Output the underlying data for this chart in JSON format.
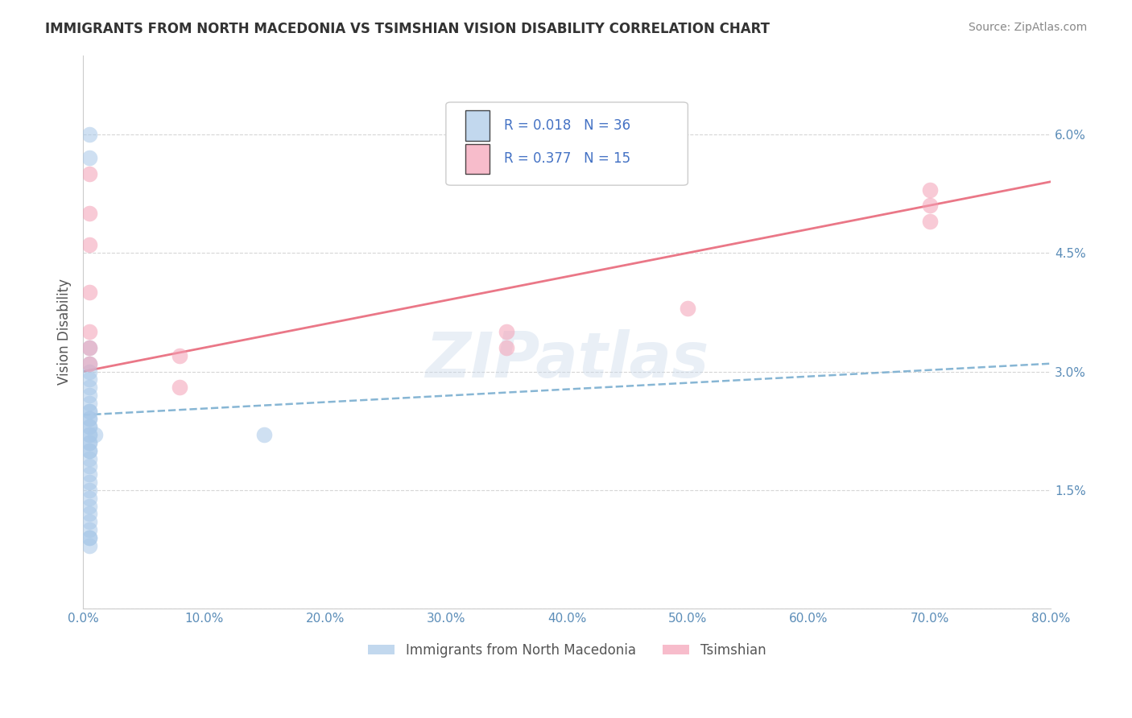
{
  "title": "IMMIGRANTS FROM NORTH MACEDONIA VS TSIMSHIAN VISION DISABILITY CORRELATION CHART",
  "source": "Source: ZipAtlas.com",
  "ylabel": "Vision Disability",
  "legend_label_blue": "Immigrants from North Macedonia",
  "legend_label_pink": "Tsimshian",
  "R_blue": 0.018,
  "N_blue": 36,
  "R_pink": 0.377,
  "N_pink": 15,
  "xlim": [
    0.0,
    0.8
  ],
  "ylim": [
    0.0,
    0.07
  ],
  "xticks": [
    0.0,
    0.1,
    0.2,
    0.3,
    0.4,
    0.5,
    0.6,
    0.7,
    0.8
  ],
  "yticks": [
    0.0,
    0.015,
    0.03,
    0.045,
    0.06
  ],
  "ytick_labels": [
    "",
    "1.5%",
    "3.0%",
    "4.5%",
    "6.0%"
  ],
  "xtick_labels": [
    "0.0%",
    "10.0%",
    "20.0%",
    "30.0%",
    "40.0%",
    "50.0%",
    "60.0%",
    "70.0%",
    "80.0%"
  ],
  "color_blue": "#a8c8e8",
  "color_pink": "#f4a0b5",
  "color_blue_line": "#7aaed0",
  "color_pink_line": "#e8687a",
  "color_axis_text": "#5b8db8",
  "color_legend_text_dark": "#333333",
  "color_legend_r_blue": "#4472c4",
  "color_legend_r_pink": "#4472c4",
  "watermark": "ZIPatlas",
  "blue_x": [
    0.005,
    0.005,
    0.005,
    0.005,
    0.005,
    0.005,
    0.005,
    0.005,
    0.005,
    0.005,
    0.005,
    0.005,
    0.005,
    0.005,
    0.005,
    0.005,
    0.005,
    0.005,
    0.005,
    0.005,
    0.005,
    0.005,
    0.005,
    0.005,
    0.005,
    0.005,
    0.005,
    0.005,
    0.005,
    0.005,
    0.005,
    0.005,
    0.005,
    0.01,
    0.15,
    0.005
  ],
  "blue_y": [
    0.06,
    0.057,
    0.033,
    0.031,
    0.03,
    0.029,
    0.028,
    0.027,
    0.026,
    0.025,
    0.025,
    0.024,
    0.024,
    0.023,
    0.023,
    0.022,
    0.022,
    0.021,
    0.021,
    0.02,
    0.02,
    0.019,
    0.018,
    0.017,
    0.016,
    0.015,
    0.014,
    0.013,
    0.012,
    0.011,
    0.01,
    0.009,
    0.009,
    0.022,
    0.022,
    0.008
  ],
  "pink_x": [
    0.005,
    0.005,
    0.005,
    0.005,
    0.005,
    0.005,
    0.005,
    0.08,
    0.08,
    0.35,
    0.35,
    0.5,
    0.7,
    0.7,
    0.7
  ],
  "pink_y": [
    0.055,
    0.05,
    0.046,
    0.04,
    0.035,
    0.033,
    0.031,
    0.032,
    0.028,
    0.035,
    0.033,
    0.038,
    0.051,
    0.053,
    0.049
  ],
  "blue_trend_y0": 0.0245,
  "blue_trend_y1": 0.031,
  "pink_trend_y0": 0.03,
  "pink_trend_y1": 0.054
}
